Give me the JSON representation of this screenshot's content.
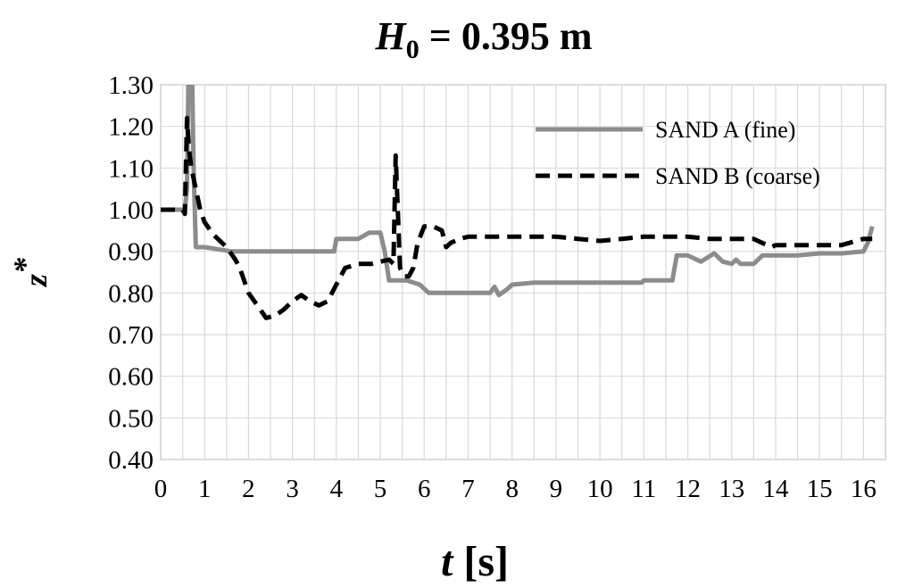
{
  "chart_data": {
    "type": "line",
    "title": {
      "variable": "H",
      "subscript": "0",
      "rest": " = 0.395 m"
    },
    "xlabel": {
      "variable": "t",
      "unit": " [s]"
    },
    "ylabel": {
      "variable": "z",
      "superscript": "*"
    },
    "xlim": [
      0,
      16.5
    ],
    "ylim": [
      0.4,
      1.3
    ],
    "x_ticks": [
      "0",
      "1",
      "2",
      "3",
      "4",
      "5",
      "6",
      "7",
      "8",
      "9",
      "10",
      "11",
      "12",
      "13",
      "14",
      "15",
      "16"
    ],
    "y_ticks": [
      "0.40",
      "0.50",
      "0.60",
      "0.70",
      "0.80",
      "0.90",
      "1.00",
      "1.10",
      "1.20",
      "1.30"
    ],
    "grid": true,
    "legend_position": "top-right",
    "series": [
      {
        "name": "SAND A (fine)",
        "style": "solid",
        "color": "#8c8c8c",
        "points": [
          [
            0,
            1.0
          ],
          [
            0.55,
            1.0
          ],
          [
            0.6,
            1.05
          ],
          [
            0.63,
            1.3
          ],
          [
            0.72,
            1.3
          ],
          [
            0.75,
            1.1
          ],
          [
            0.8,
            0.91
          ],
          [
            1.0,
            0.91
          ],
          [
            1.3,
            0.905
          ],
          [
            1.6,
            0.9
          ],
          [
            2.0,
            0.9
          ],
          [
            2.5,
            0.9
          ],
          [
            3.0,
            0.9
          ],
          [
            3.5,
            0.9
          ],
          [
            3.95,
            0.9
          ],
          [
            4.0,
            0.93
          ],
          [
            4.5,
            0.93
          ],
          [
            4.75,
            0.945
          ],
          [
            5.0,
            0.945
          ],
          [
            5.1,
            0.9
          ],
          [
            5.2,
            0.83
          ],
          [
            5.6,
            0.83
          ],
          [
            5.9,
            0.82
          ],
          [
            6.1,
            0.8
          ],
          [
            6.5,
            0.8
          ],
          [
            7.0,
            0.8
          ],
          [
            7.5,
            0.8
          ],
          [
            7.6,
            0.815
          ],
          [
            7.7,
            0.795
          ],
          [
            7.9,
            0.81
          ],
          [
            8.0,
            0.82
          ],
          [
            8.5,
            0.825
          ],
          [
            9.0,
            0.825
          ],
          [
            10.0,
            0.825
          ],
          [
            10.95,
            0.825
          ],
          [
            11.0,
            0.83
          ],
          [
            11.65,
            0.83
          ],
          [
            11.75,
            0.89
          ],
          [
            12.0,
            0.89
          ],
          [
            12.3,
            0.875
          ],
          [
            12.6,
            0.895
          ],
          [
            12.8,
            0.875
          ],
          [
            13.0,
            0.87
          ],
          [
            13.1,
            0.88
          ],
          [
            13.2,
            0.87
          ],
          [
            13.5,
            0.87
          ],
          [
            13.7,
            0.89
          ],
          [
            14.0,
            0.89
          ],
          [
            14.5,
            0.89
          ],
          [
            15.0,
            0.895
          ],
          [
            15.5,
            0.895
          ],
          [
            16.0,
            0.9
          ],
          [
            16.1,
            0.92
          ],
          [
            16.2,
            0.96
          ]
        ]
      },
      {
        "name": "SAND B (coarse)",
        "style": "dashed",
        "color": "#000000",
        "points": [
          [
            0,
            1.0
          ],
          [
            0.4,
            1.0
          ],
          [
            0.5,
            1.0
          ],
          [
            0.55,
            0.99
          ],
          [
            0.6,
            1.22
          ],
          [
            0.65,
            1.14
          ],
          [
            0.7,
            1.1
          ],
          [
            0.8,
            1.05
          ],
          [
            0.9,
            1.0
          ],
          [
            1.0,
            0.97
          ],
          [
            1.2,
            0.94
          ],
          [
            1.5,
            0.91
          ],
          [
            1.7,
            0.88
          ],
          [
            1.8,
            0.86
          ],
          [
            2.0,
            0.8
          ],
          [
            2.2,
            0.77
          ],
          [
            2.4,
            0.74
          ],
          [
            2.6,
            0.745
          ],
          [
            2.8,
            0.76
          ],
          [
            3.0,
            0.78
          ],
          [
            3.2,
            0.795
          ],
          [
            3.4,
            0.78
          ],
          [
            3.6,
            0.77
          ],
          [
            3.8,
            0.78
          ],
          [
            4.0,
            0.82
          ],
          [
            4.2,
            0.86
          ],
          [
            4.5,
            0.87
          ],
          [
            4.8,
            0.87
          ],
          [
            5.0,
            0.875
          ],
          [
            5.2,
            0.88
          ],
          [
            5.3,
            0.87
          ],
          [
            5.35,
            1.13
          ],
          [
            5.45,
            0.86
          ],
          [
            5.55,
            0.84
          ],
          [
            5.65,
            0.84
          ],
          [
            5.75,
            0.86
          ],
          [
            5.85,
            0.92
          ],
          [
            6.0,
            0.96
          ],
          [
            6.2,
            0.96
          ],
          [
            6.4,
            0.95
          ],
          [
            6.5,
            0.91
          ],
          [
            6.6,
            0.92
          ],
          [
            6.8,
            0.93
          ],
          [
            7.0,
            0.935
          ],
          [
            7.5,
            0.935
          ],
          [
            8.0,
            0.935
          ],
          [
            8.5,
            0.935
          ],
          [
            9.0,
            0.935
          ],
          [
            9.5,
            0.93
          ],
          [
            10.0,
            0.925
          ],
          [
            10.5,
            0.93
          ],
          [
            11.0,
            0.935
          ],
          [
            11.5,
            0.935
          ],
          [
            12.0,
            0.935
          ],
          [
            12.5,
            0.93
          ],
          [
            13.0,
            0.93
          ],
          [
            13.5,
            0.93
          ],
          [
            13.9,
            0.91
          ],
          [
            14.0,
            0.915
          ],
          [
            14.5,
            0.915
          ],
          [
            15.0,
            0.915
          ],
          [
            15.5,
            0.915
          ],
          [
            16.0,
            0.93
          ],
          [
            16.2,
            0.93
          ]
        ]
      }
    ]
  }
}
